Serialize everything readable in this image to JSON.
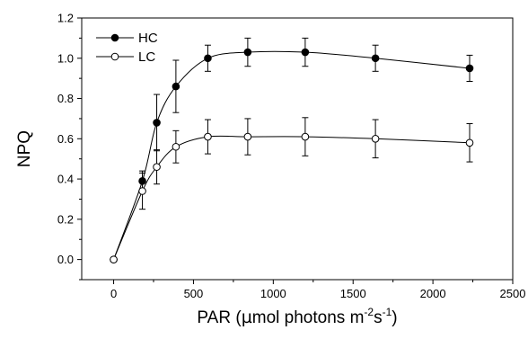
{
  "chart_data": {
    "type": "line",
    "title": "",
    "ylabel": "NPQ",
    "xlabel": {
      "pre": "PAR (",
      "mu": "µ",
      "main": "mol photons m",
      "exp1": "-2",
      "mid": "s",
      "exp2": "-1",
      "post": ")"
    },
    "xlim": [
      -200,
      2500
    ],
    "ylim": [
      -0.1,
      1.2
    ],
    "xticks": [
      0,
      500,
      1000,
      1500,
      2000,
      2500
    ],
    "xtick_labels": [
      "0",
      "500",
      "1000",
      "1500",
      "2000",
      "2500"
    ],
    "yticks": [
      0.0,
      0.2,
      0.4,
      0.6,
      0.8,
      1.0,
      1.2
    ],
    "ytick_labels": [
      "0.0",
      "0.2",
      "0.4",
      "0.6",
      "0.8",
      "1.0",
      "1.2"
    ],
    "legend_position": "top-left",
    "grid": false,
    "series": [
      {
        "name": "HC",
        "marker": "filled-circle",
        "color": "#000000",
        "x": [
          0,
          180,
          270,
          390,
          590,
          840,
          1200,
          1640,
          2230
        ],
        "y": [
          0.0,
          0.39,
          0.68,
          0.86,
          1.0,
          1.03,
          1.03,
          1.0,
          0.95
        ],
        "err": [
          0,
          0.05,
          0.14,
          0.13,
          0.065,
          0.07,
          0.07,
          0.065,
          0.065
        ]
      },
      {
        "name": "LC",
        "marker": "open-circle",
        "color": "#000000",
        "x": [
          0,
          180,
          270,
          390,
          590,
          840,
          1200,
          1640,
          2230
        ],
        "y": [
          0.0,
          0.34,
          0.46,
          0.56,
          0.61,
          0.61,
          0.61,
          0.6,
          0.58
        ],
        "err": [
          0,
          0.09,
          0.085,
          0.08,
          0.085,
          0.09,
          0.095,
          0.095,
          0.095
        ]
      }
    ]
  }
}
